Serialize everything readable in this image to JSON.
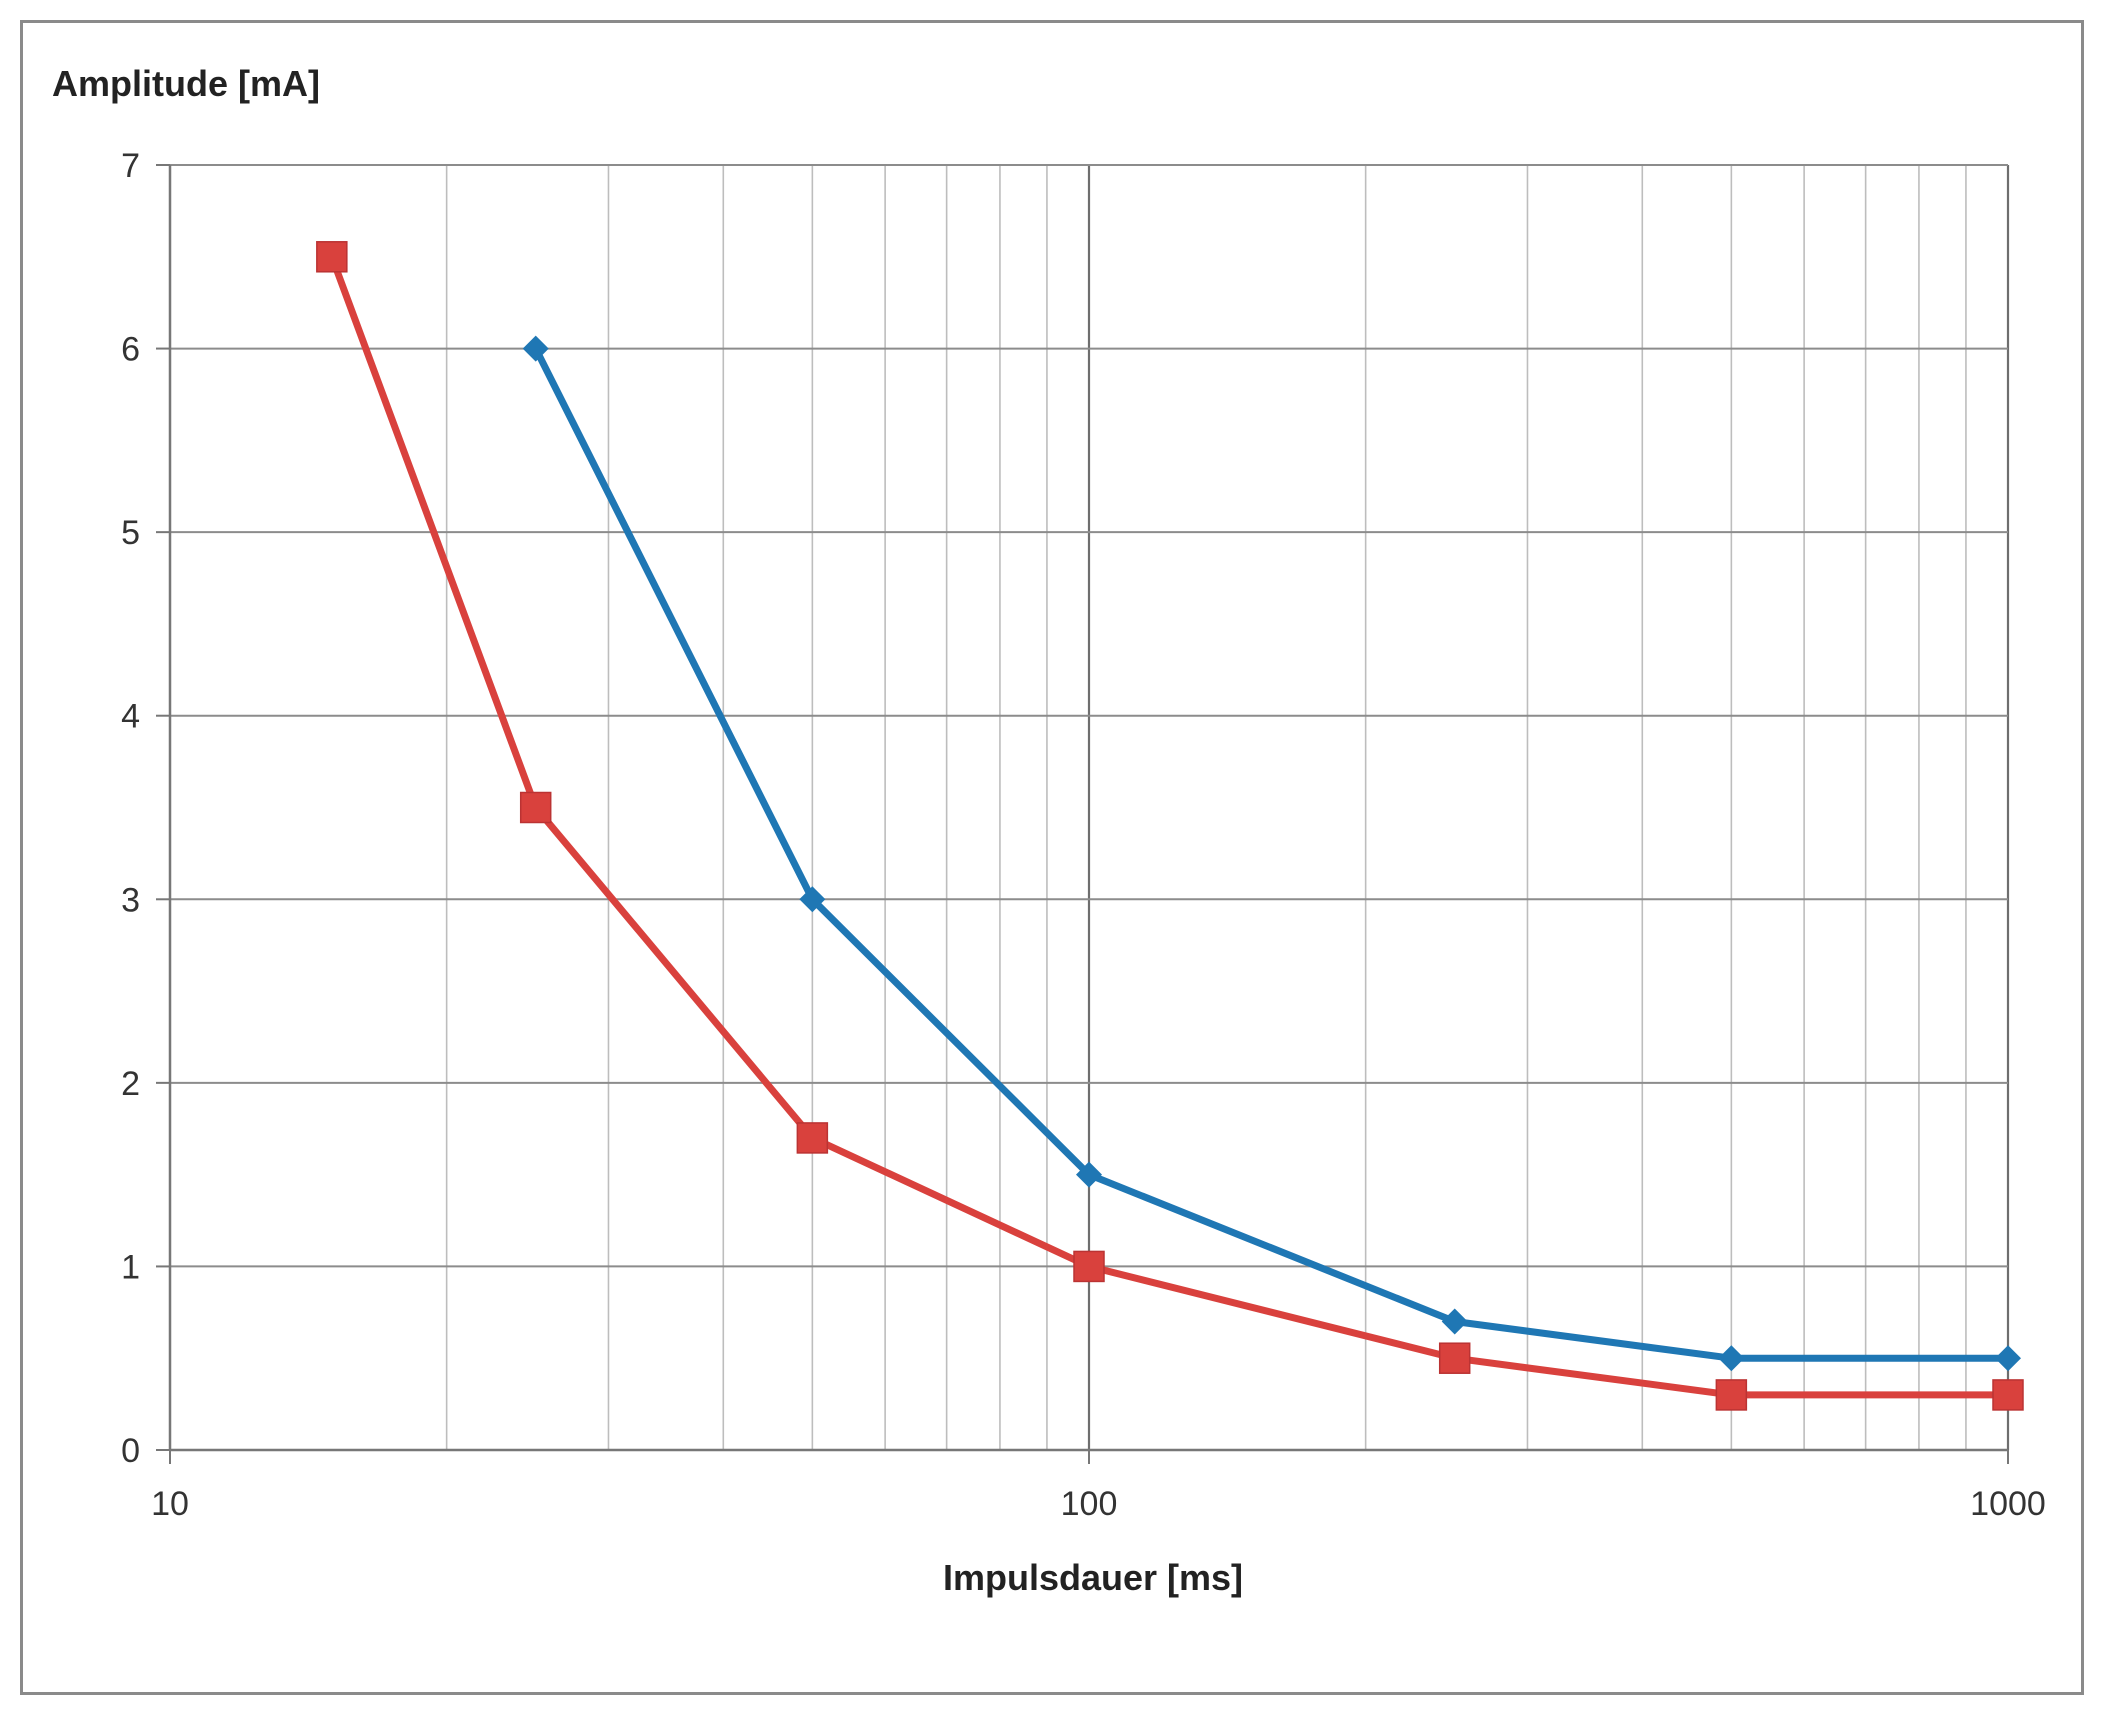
{
  "chart_data": {
    "type": "line",
    "xscale": "log",
    "xlim": [
      10,
      1000
    ],
    "ylim": [
      0,
      7
    ],
    "xlabel": "Impulsdauer [ms]",
    "ylabel": "Amplitude [mA]",
    "x_ticks": [
      "10",
      "100",
      "1000"
    ],
    "y_ticks": [
      "0",
      "1",
      "2",
      "3",
      "4",
      "5",
      "6",
      "7"
    ],
    "grid": true,
    "legend": "none",
    "series": [
      {
        "color": "#1f77b4",
        "marker": "diamond",
        "x": [
          25,
          50,
          100,
          250,
          500,
          1000
        ],
        "y": [
          6,
          3,
          1.5,
          0.7,
          0.5,
          0.5
        ]
      },
      {
        "color": "#d9413d",
        "marker": "square",
        "x": [
          15,
          25,
          50,
          100,
          250,
          500,
          1000
        ],
        "y": [
          6.5,
          3.5,
          1.7,
          1.0,
          0.5,
          0.3,
          0.3
        ]
      }
    ]
  }
}
